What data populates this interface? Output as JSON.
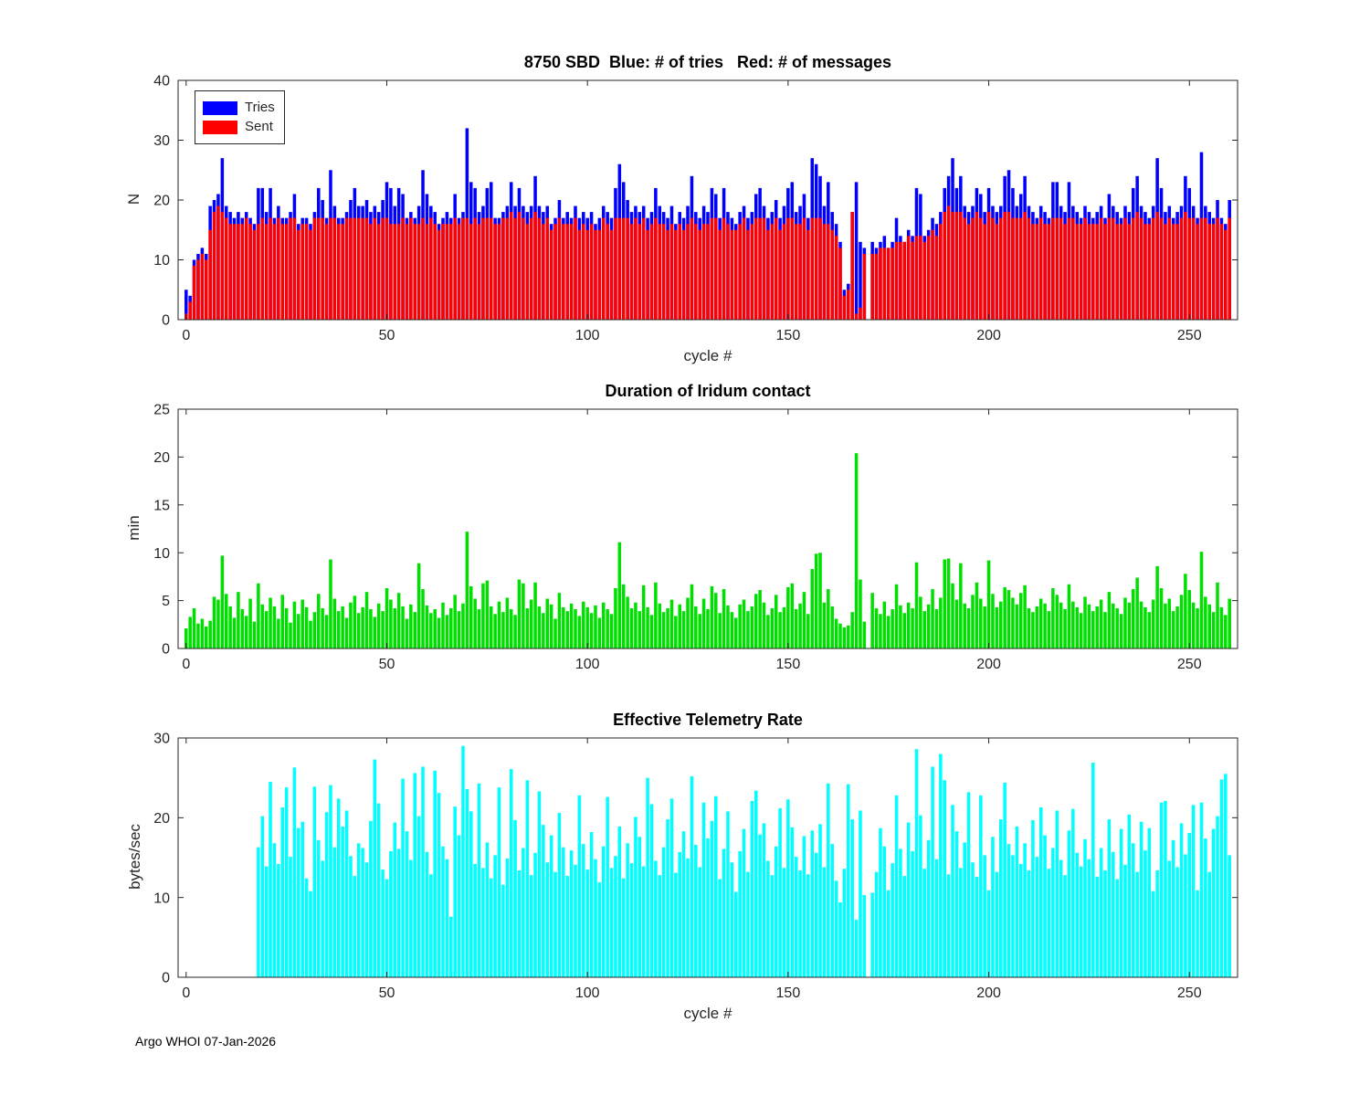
{
  "footer": {
    "text": "Argo WHOI 07-Jan-2026"
  },
  "chart_data": [
    {
      "type": "bar",
      "title": "8750 SBD  Blue: # of tries   Red: # of messages",
      "ylabel": "N",
      "xlabel": "cycle #",
      "ylim": [
        0,
        40
      ],
      "yticks": [
        0,
        10,
        20,
        30,
        40
      ],
      "xlim": [
        -2,
        262
      ],
      "xticks": [
        0,
        50,
        100,
        150,
        200,
        250
      ],
      "grid": false,
      "legend": {
        "position": "top-left",
        "items": [
          {
            "label": "Tries",
            "color": "#0000ff"
          },
          {
            "label": "Sent",
            "color": "#ff0000"
          }
        ]
      },
      "x_start": 0,
      "x_step": 1,
      "series": [
        {
          "name": "Tries",
          "color": "#0000ff",
          "values": [
            5,
            4,
            10,
            11,
            12,
            11,
            19,
            20,
            21,
            27,
            19,
            18,
            17,
            18,
            17,
            18,
            17,
            16,
            22,
            22,
            18,
            22,
            17,
            19,
            17,
            17,
            18,
            21,
            16,
            17,
            17,
            16,
            18,
            22,
            20,
            17,
            25,
            19,
            17,
            17,
            18,
            20,
            22,
            19,
            19,
            20,
            18,
            19,
            18,
            20,
            23,
            22,
            19,
            22,
            21,
            17,
            18,
            17,
            19,
            25,
            21,
            19,
            18,
            16,
            17,
            18,
            17,
            21,
            17,
            18,
            32,
            23,
            22,
            18,
            19,
            22,
            23,
            17,
            17,
            18,
            19,
            23,
            19,
            22,
            19,
            18,
            19,
            24,
            19,
            18,
            19,
            16,
            17,
            20,
            17,
            18,
            17,
            19,
            17,
            18,
            17,
            18,
            16,
            17,
            19,
            18,
            17,
            22,
            26,
            23,
            20,
            18,
            19,
            18,
            19,
            17,
            18,
            22,
            19,
            18,
            17,
            19,
            16,
            18,
            17,
            19,
            24,
            18,
            17,
            19,
            18,
            22,
            21,
            17,
            22,
            18,
            17,
            16,
            18,
            19,
            17,
            18,
            21,
            22,
            19,
            17,
            18,
            20,
            17,
            19,
            22,
            23,
            18,
            19,
            21,
            17,
            27,
            26,
            24,
            19,
            23,
            18,
            16,
            13,
            5,
            6,
            18,
            23,
            13,
            12,
            0,
            13,
            12,
            13,
            14,
            12,
            13,
            17,
            14,
            13,
            15,
            14,
            22,
            21,
            14,
            15,
            17,
            16,
            18,
            22,
            24,
            27,
            22,
            24,
            19,
            18,
            19,
            22,
            21,
            18,
            22,
            19,
            18,
            19,
            24,
            25,
            22,
            19,
            21,
            24,
            19,
            18,
            17,
            19,
            18,
            17,
            23,
            23,
            19,
            18,
            23,
            19,
            18,
            17,
            19,
            18,
            17,
            18,
            19,
            17,
            21,
            19,
            18,
            17,
            19,
            18,
            22,
            24,
            19,
            18,
            17,
            19,
            27,
            22,
            18,
            19,
            17,
            18,
            19,
            24,
            22,
            19,
            17,
            28,
            19,
            18,
            17,
            20,
            17,
            16,
            20
          ]
        },
        {
          "name": "Sent",
          "color": "#ff0000",
          "values": [
            1,
            3,
            9,
            10,
            11,
            10,
            15,
            18,
            19,
            18,
            17,
            16,
            16,
            16,
            16,
            17,
            16,
            15,
            16,
            17,
            16,
            17,
            16,
            17,
            16,
            16,
            17,
            17,
            15,
            16,
            16,
            15,
            17,
            17,
            17,
            16,
            17,
            17,
            16,
            16,
            17,
            17,
            17,
            17,
            17,
            17,
            16,
            17,
            16,
            17,
            17,
            16,
            16,
            16,
            17,
            16,
            17,
            16,
            16,
            17,
            16,
            17,
            16,
            15,
            16,
            16,
            16,
            17,
            16,
            17,
            17,
            16,
            17,
            16,
            17,
            17,
            17,
            16,
            16,
            17,
            17,
            18,
            17,
            18,
            17,
            16,
            17,
            18,
            17,
            16,
            17,
            15,
            16,
            17,
            16,
            16,
            16,
            17,
            15,
            16,
            15,
            16,
            15,
            15,
            17,
            16,
            15,
            17,
            17,
            17,
            17,
            16,
            17,
            16,
            17,
            15,
            16,
            17,
            16,
            16,
            15,
            16,
            15,
            16,
            15,
            16,
            17,
            16,
            15,
            16,
            16,
            17,
            17,
            15,
            17,
            16,
            15,
            15,
            16,
            17,
            15,
            16,
            17,
            17,
            17,
            15,
            16,
            17,
            15,
            16,
            17,
            17,
            16,
            16,
            17,
            15,
            17,
            17,
            17,
            16,
            16,
            15,
            14,
            12,
            4,
            5,
            18,
            1,
            2,
            11,
            0,
            11,
            11,
            12,
            12,
            12,
            12,
            13,
            13,
            13,
            14,
            13,
            14,
            14,
            13,
            14,
            15,
            14,
            16,
            18,
            19,
            18,
            18,
            18,
            17,
            16,
            17,
            18,
            17,
            16,
            18,
            17,
            16,
            17,
            18,
            18,
            17,
            17,
            17,
            18,
            17,
            16,
            16,
            17,
            16,
            16,
            17,
            17,
            17,
            16,
            17,
            17,
            16,
            16,
            17,
            16,
            16,
            16,
            17,
            16,
            17,
            17,
            16,
            16,
            17,
            16,
            17,
            18,
            17,
            16,
            16,
            17,
            18,
            17,
            16,
            17,
            16,
            16,
            17,
            18,
            17,
            17,
            16,
            17,
            17,
            16,
            16,
            17,
            16,
            15,
            17
          ]
        }
      ]
    },
    {
      "type": "bar",
      "title": "Duration of Iridum contact",
      "ylabel": "min",
      "xlabel": "",
      "ylim": [
        0,
        25
      ],
      "yticks": [
        0,
        5,
        10,
        15,
        20,
        25
      ],
      "xlim": [
        -2,
        262
      ],
      "xticks": [
        0,
        50,
        100,
        150,
        200,
        250
      ],
      "grid": false,
      "x_start": 0,
      "x_step": 1,
      "series": [
        {
          "name": "Duration",
          "color": "#00e000",
          "values": [
            2.1,
            3.3,
            4.2,
            2.6,
            3.1,
            2.3,
            2.9,
            5.4,
            5.1,
            9.7,
            5.7,
            4.4,
            3.2,
            5.9,
            4.1,
            3.4,
            5.2,
            2.8,
            6.8,
            4.6,
            3.9,
            5.3,
            4.4,
            3.1,
            5.6,
            4.2,
            2.7,
            4.9,
            3.6,
            5.1,
            4.3,
            2.9,
            3.8,
            5.7,
            4.2,
            3.5,
            9.3,
            5.2,
            3.9,
            4.4,
            3.2,
            4.8,
            5.5,
            3.7,
            4.3,
            5.9,
            4.1,
            3.3,
            4.7,
            3.9,
            6.3,
            5.1,
            4.2,
            5.8,
            4.4,
            3.1,
            4.6,
            3.8,
            8.9,
            6.2,
            4.5,
            3.7,
            4.1,
            3.2,
            4.8,
            3.5,
            4.2,
            5.6,
            3.9,
            4.7,
            12.2,
            6.5,
            5.2,
            4.1,
            6.8,
            7.1,
            4.4,
            3.6,
            4.9,
            3.8,
            5.3,
            4.1,
            3.5,
            7.2,
            6.8,
            4.2,
            5.1,
            6.9,
            4.4,
            3.7,
            5.2,
            4.6,
            3.1,
            5.8,
            4.3,
            3.9,
            4.7,
            4.1,
            3.4,
            4.9,
            4.3,
            3.7,
            4.5,
            3.2,
            4.8,
            4.1,
            3.6,
            6.3,
            11.1,
            6.7,
            5.4,
            4.2,
            4.8,
            3.9,
            6.6,
            4.3,
            3.5,
            6.9,
            4.7,
            3.8,
            4.2,
            5.1,
            3.4,
            4.6,
            3.9,
            5.3,
            6.7,
            4.4,
            3.6,
            5.2,
            4.1,
            6.5,
            5.8,
            3.7,
            6.2,
            4.5,
            3.8,
            3.2,
            4.6,
            5.1,
            3.9,
            4.4,
            5.7,
            6.1,
            4.8,
            3.5,
            4.2,
            5.6,
            3.8,
            4.3,
            6.4,
            6.8,
            4.1,
            4.7,
            5.9,
            3.6,
            8.3,
            9.9,
            10,
            4.8,
            6.2,
            4.4,
            3.1,
            2.6,
            2.2,
            2.4,
            3.8,
            20.4,
            7.2,
            2.8,
            0,
            5.8,
            4.2,
            3.6,
            4.9,
            3.4,
            4.1,
            6.7,
            4.5,
            3.7,
            4.8,
            4.2,
            9,
            5.4,
            3.9,
            4.6,
            6.2,
            4.1,
            5.3,
            9.3,
            9.4,
            6.8,
            5.1,
            8.9,
            4.7,
            4.2,
            5.6,
            6.9,
            5.2,
            4.4,
            9.2,
            5.7,
            4.3,
            4.9,
            6.4,
            6.1,
            5.3,
            4.6,
            5.8,
            6.6,
            4.2,
            3.8,
            4.4,
            5.2,
            4.7,
            3.9,
            6.3,
            5.6,
            4.8,
            4.1,
            6.7,
            4.9,
            4.3,
            3.7,
            5.4,
            4.6,
            3.9,
            4.4,
            5.1,
            3.8,
            5.9,
            4.7,
            4.2,
            3.6,
            5.3,
            4.8,
            6.2,
            7.4,
            4.9,
            4.3,
            3.8,
            5.1,
            8.6,
            6.3,
            4.7,
            5.2,
            3.9,
            4.4,
            5.6,
            7.8,
            6.1,
            4.8,
            4.2,
            10.1,
            5.4,
            4.6,
            3.8,
            6.9,
            4.3,
            3.5,
            5.2
          ]
        }
      ]
    },
    {
      "type": "bar",
      "title": "Effective Telemetry Rate",
      "ylabel": "bytes/sec",
      "xlabel": "cycle #",
      "ylim": [
        0,
        30
      ],
      "yticks": [
        0,
        10,
        20,
        30
      ],
      "xlim": [
        -2,
        262
      ],
      "xticks": [
        0,
        50,
        100,
        150,
        200,
        250
      ],
      "grid": false,
      "x_start": 0,
      "x_step": 1,
      "series": [
        {
          "name": "Rate",
          "color": "#00ffff",
          "values": [
            0,
            0,
            0,
            0,
            0,
            0,
            0,
            0,
            0,
            0,
            0,
            0,
            0,
            0,
            0,
            0,
            0,
            0,
            16.3,
            20.2,
            13.9,
            24.5,
            16.8,
            14.2,
            21.3,
            23.8,
            15.1,
            26.3,
            18.7,
            19.5,
            12.4,
            10.8,
            23.9,
            17.2,
            14.6,
            20.7,
            24.1,
            16.3,
            22.4,
            18.9,
            20.9,
            15.2,
            12.7,
            16.8,
            16.2,
            14.4,
            19.6,
            27.3,
            21.8,
            13.5,
            12.3,
            15.8,
            19.4,
            16.1,
            24.9,
            18.3,
            14.7,
            25.6,
            20.2,
            26.4,
            15.7,
            12.9,
            25.9,
            23.1,
            16.4,
            14.8,
            7.6,
            21.4,
            17.8,
            29,
            23.6,
            20.8,
            14.2,
            24.3,
            13.7,
            16.9,
            12.4,
            15.3,
            23.8,
            11.6,
            14.9,
            26.1,
            19.7,
            13.4,
            16.2,
            24.7,
            12.8,
            15.6,
            23.3,
            19.1,
            14.4,
            17.8,
            13.2,
            20.6,
            16.3,
            12.7,
            15.9,
            14.1,
            22.8,
            16.7,
            13.5,
            18.2,
            14.8,
            11.9,
            16.4,
            22.6,
            13.7,
            15.2,
            18.9,
            12.4,
            16.8,
            14.3,
            20.1,
            17.6,
            13.9,
            25,
            21.7,
            14.6,
            12.8,
            16.3,
            19.8,
            22.4,
            13.1,
            15.7,
            18.3,
            14.9,
            25.2,
            16.6,
            13.8,
            21.9,
            17.4,
            19.6,
            22.7,
            12.3,
            16.1,
            20.8,
            14.4,
            10.7,
            15.8,
            18.6,
            13.2,
            22.1,
            23.4,
            17.9,
            19.3,
            14.6,
            12.8,
            16.4,
            21.2,
            13.7,
            22.3,
            18.8,
            15.1,
            13.4,
            17.7,
            12.9,
            18.4,
            15.6,
            19.2,
            13.8,
            24.3,
            16.7,
            12.1,
            9.4,
            13.6,
            24.2,
            19.8,
            7.2,
            20.9,
            10.3,
            0,
            10.6,
            13.2,
            18.7,
            16.4,
            10.9,
            14.3,
            22.8,
            16.1,
            12.7,
            19.4,
            15.8,
            28.6,
            20.3,
            13.6,
            17.2,
            26.4,
            14.8,
            28,
            24.7,
            12.9,
            21.6,
            18.3,
            13.7,
            16.9,
            23.2,
            14.4,
            12.6,
            22.8,
            15.3,
            10.9,
            17.6,
            13.2,
            19.8,
            24.4,
            16.7,
            15.3,
            18.9,
            14.2,
            16.8,
            13.4,
            19.7,
            15.1,
            21.3,
            17.8,
            13.6,
            16.2,
            20.9,
            14.7,
            12.8,
            18.4,
            21.1,
            15.6,
            13.9,
            17.3,
            14.8,
            26.9,
            12.6,
            16.2,
            13.4,
            19.8,
            15.7,
            12.3,
            18.6,
            14.1,
            20.4,
            16.8,
            13.2,
            19.5,
            15.9,
            18.7,
            10.8,
            13.4,
            21.9,
            22.1,
            14.6,
            17.2,
            13.8,
            19.3,
            15.4,
            18.1,
            21.6,
            10.9,
            21.9,
            17.4,
            13.2,
            18.6,
            20.2,
            24.8,
            25.5,
            15.3
          ]
        }
      ]
    }
  ]
}
